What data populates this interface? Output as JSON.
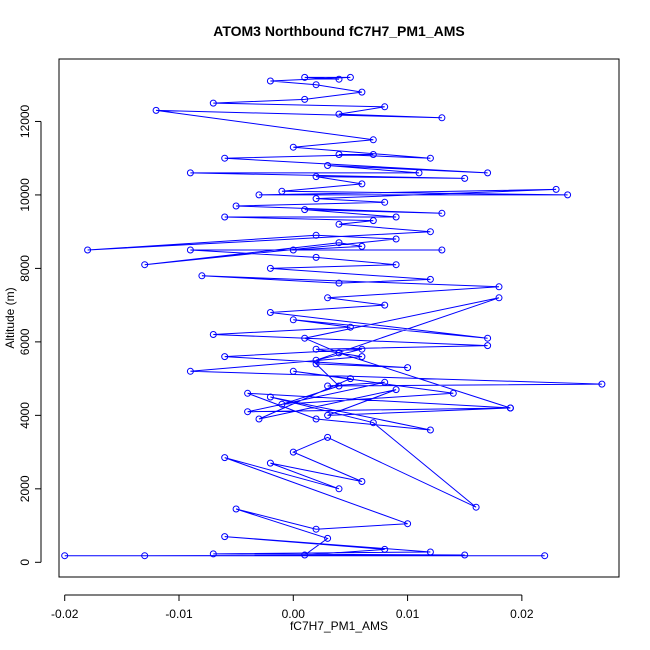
{
  "chart_data": {
    "type": "line",
    "title": "ATOM3 Northbound fC7H7_PM1_AMS",
    "xlabel": "fC7H7_PM1_AMS",
    "ylabel": "Altitude (m)",
    "xlim": [
      -0.0205,
      0.0285
    ],
    "ylim": [
      -400,
      13700
    ],
    "xticks": [
      -0.02,
      -0.01,
      0.0,
      0.01,
      0.02
    ],
    "xtick_labels": [
      "-0.02",
      "-0.01",
      "0.00",
      "0.01",
      "0.02"
    ],
    "yticks": [
      0,
      2000,
      4000,
      6000,
      8000,
      10000,
      12000
    ],
    "ytick_labels": [
      "0",
      "2000",
      "4000",
      "6000",
      "8000",
      "10000",
      "12000"
    ],
    "series_color": "#0000ff",
    "marker": "open-circle",
    "grid": false,
    "legend": "none",
    "series": [
      {
        "x": [
          -0.02,
          0.022,
          -0.013,
          0.015,
          -0.007,
          0.012,
          -0.006,
          0.008,
          0.001,
          0.003,
          -0.005,
          0.002,
          0.01,
          -0.006,
          0.004,
          -0.002,
          0.006,
          0.0,
          0.003,
          0.016,
          0.007,
          -0.002,
          0.012,
          0.002,
          -0.004,
          0.019,
          0.003,
          0.009,
          -0.003,
          0.005,
          0.0,
          0.014,
          -0.001,
          0.004,
          0.002,
          0.01,
          -0.006,
          0.006,
          0.002,
          0.018,
          0.001,
          0.004,
          0.019,
          -0.004,
          0.008,
          0.003,
          0.027,
          -0.009,
          0.006,
          0.002,
          0.017,
          -0.007,
          0.005,
          0.0,
          0.017,
          -0.002,
          0.008,
          0.003,
          0.018,
          -0.008,
          0.004,
          0.012,
          -0.002,
          0.009,
          0.002,
          -0.009,
          0.013,
          0.0,
          0.006,
          0.004,
          -0.013,
          0.009,
          0.002,
          -0.018,
          0.012,
          0.004,
          0.007,
          -0.006,
          0.009,
          0.001,
          0.013,
          -0.005,
          0.008,
          0.002,
          0.023,
          -0.003,
          0.024,
          -0.001,
          0.006,
          0.002,
          0.015,
          -0.009,
          0.011,
          0.003,
          0.017,
          -0.006,
          0.007,
          0.004,
          0.012,
          0.0,
          0.007,
          -0.012,
          0.013,
          0.004,
          0.008,
          -0.007,
          0.001,
          0.006,
          0.002,
          -0.002,
          0.005,
          0.001,
          0.004
        ],
        "y": [
          180,
          180,
          180,
          200,
          230,
          280,
          700,
          350,
          200,
          650,
          1450,
          900,
          1050,
          2850,
          2000,
          2700,
          2200,
          3000,
          3400,
          1500,
          3800,
          4500,
          3600,
          3900,
          4600,
          4200,
          4000,
          4700,
          3900,
          5000,
          5200,
          4600,
          4300,
          4800,
          5400,
          5300,
          5600,
          5800,
          5500,
          7200,
          6100,
          5700,
          4200,
          4100,
          4900,
          4800,
          4850,
          5200,
          5600,
          5800,
          5900,
          6200,
          6400,
          6600,
          6100,
          6800,
          7000,
          7200,
          7500,
          7800,
          7600,
          7700,
          8000,
          8100,
          8300,
          8500,
          8500,
          8500,
          8600,
          8700,
          8100,
          8800,
          8900,
          8500,
          9000,
          9200,
          9300,
          9400,
          9400,
          9600,
          9500,
          9700,
          9800,
          9900,
          10150,
          10000,
          10000,
          10100,
          10300,
          10500,
          10450,
          10600,
          10600,
          10800,
          10600,
          11000,
          11100,
          11100,
          11000,
          11300,
          11500,
          12300,
          12100,
          12200,
          12400,
          12500,
          12600,
          12800,
          13000,
          13100,
          13200,
          13200,
          13150
        ]
      }
    ]
  }
}
